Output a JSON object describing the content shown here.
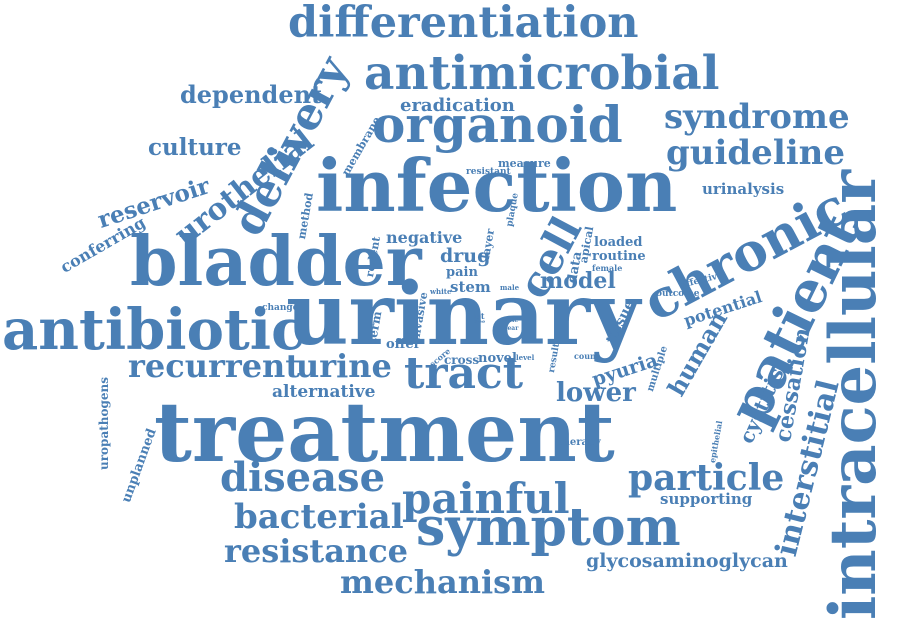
{
  "color": "#4a7fb5",
  "words": {
    "differentiation": "differentiation",
    "antimicrobial": "antimicrobial",
    "organoid": "organoid",
    "dependent": "dependent",
    "eradication": "eradication",
    "syndrome": "syndrome",
    "guideline": "guideline",
    "culture": "culture",
    "infection": "infection",
    "delivery": "delivery",
    "urothelial": "urothelial",
    "reservoir": "reservoir",
    "intracellular": "intracellular",
    "chronic": "chronic",
    "bladder": "bladder",
    "cell": "cell",
    "conferring": "conferring",
    "urinalysis": "urinalysis",
    "membrane": "membrane",
    "measure": "measure",
    "resistant": "resistant",
    "method": "method",
    "negative": "negative",
    "drug": "drug",
    "layer": "layer",
    "plaque": "plaque",
    "rodent": "rodent",
    "pain": "pain",
    "data": "data",
    "apical": "apical",
    "loaded": "loaded",
    "routine": "routine",
    "female": "female",
    "model": "model",
    "stem": "stem",
    "male": "male",
    "white": "white",
    "urinary": "urinary",
    "antibiotic": "antibiotic",
    "patient": "patient",
    "effective": "effective",
    "outcome": "outcome",
    "potential": "potential",
    "change": "change",
    "term": "term",
    "invasive": "invasive",
    "lut": "lut",
    "free": "free",
    "able": "able",
    "year": "year",
    "tissue": "tissue",
    "human": "human",
    "offer": "offer",
    "recurrent": "recurrent",
    "urine": "urine",
    "tract": "tract",
    "score": "score",
    "cross": "cross",
    "novel": "novel",
    "level": "level",
    "result": "result",
    "count": "count",
    "pyuria": "pyuria",
    "multiple": "multiple",
    "cessation": "cessation",
    "uropathogens": "uropathogens",
    "alternative": "alternative",
    "lower": "lower",
    "cystitis": "cystitis",
    "treatment": "treatment",
    "unplanned": "unplanned",
    "therapy": "therapy",
    "epithelial": "epithelial",
    "interstitial": "interstitial",
    "disease": "disease",
    "particle": "particle",
    "painful": "painful",
    "supporting": "supporting",
    "bacterial": "bacterial",
    "symptom": "symptom",
    "resistance": "resistance",
    "glycosaminoglycan": "glycosaminoglycan",
    "mechanism": "mechanism"
  }
}
